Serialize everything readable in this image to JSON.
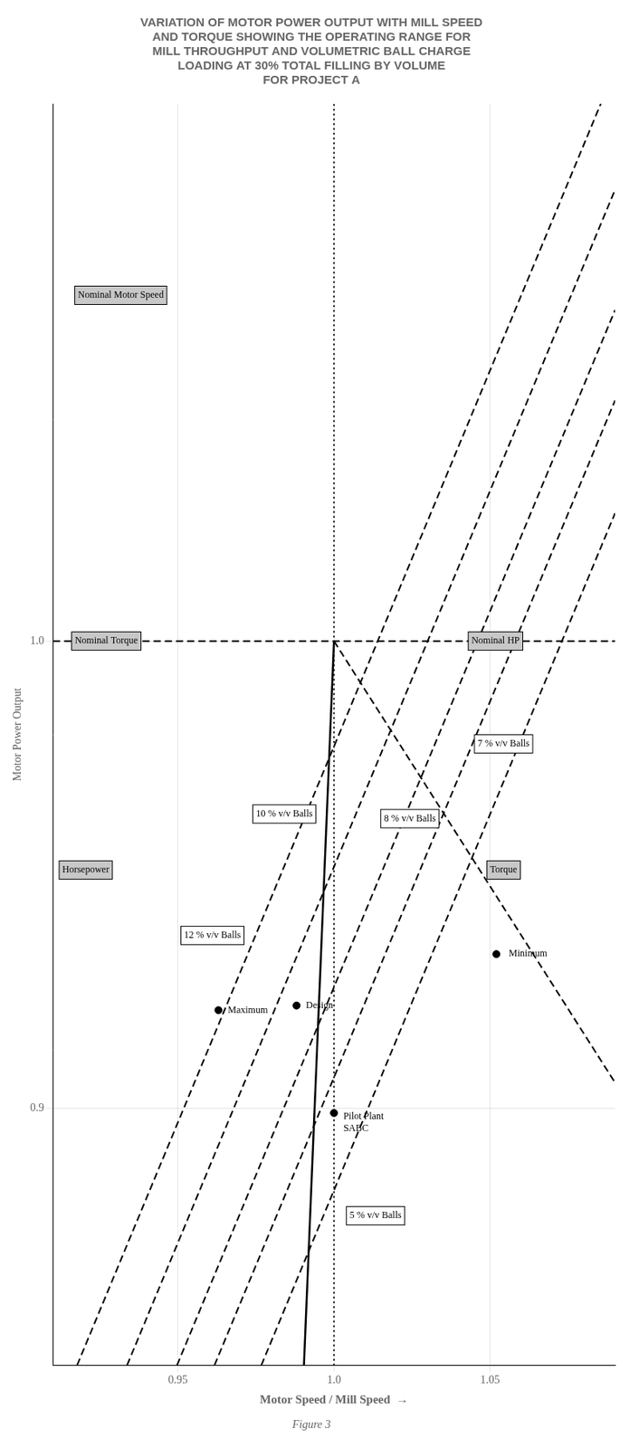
{
  "chart_data": {
    "type": "line",
    "title": [
      "VARIATION OF MOTOR POWER OUTPUT WITH MILL SPEED",
      "AND TORQUE SHOWING THE OPERATING RANGE FOR",
      "MILL THROUGHPUT AND VOLUMETRIC BALL CHARGE",
      "LOADING AT 30% TOTAL FILLING BY VOLUME",
      "FOR PROJECT A"
    ],
    "xlabel": "Motor Speed / Mill Speed  →",
    "ylabel": "Motor Power Output",
    "caption": "Figure 3",
    "xlim": [
      0.91,
      1.09
    ],
    "ylim": [
      0.845,
      1.115
    ],
    "xticks": [
      0.95,
      {
        "value": 1.0,
        "label": "1.0"
      },
      1.05
    ],
    "yticks": [
      0.9,
      {
        "value": 1.0,
        "label": "1.0"
      }
    ],
    "grid": true,
    "series": [
      {
        "type": "line",
        "line_style": "dotted",
        "color": "#000000",
        "x": [
          1.0,
          1.0
        ],
        "values": [
          0.845,
          1.115
        ]
      },
      {
        "type": "line",
        "line_style": "dashed",
        "color": "#000000",
        "x": [
          0.91,
          1.09
        ],
        "values": [
          1.0,
          1.0
        ]
      },
      {
        "type": "line",
        "line_style": "solid",
        "color": "#000000",
        "x": [
          0.99037267081,
          1.0
        ],
        "values": [
          0.845,
          1.0
        ]
      },
      {
        "type": "line",
        "line_style": "dashed",
        "color": "#000000",
        "x": [
          1.0,
          1.09
        ],
        "values": [
          1.0,
          0.9055
        ]
      },
      {
        "type": "line",
        "line_style": "dashed",
        "color": "#000000",
        "x": [
          0.9767267081,
          1.09
        ],
        "values": [
          0.845,
          1.02737
        ]
      },
      {
        "type": "line",
        "line_style": "dashed",
        "color": "#000000",
        "x": [
          0.9617267081,
          1.09
        ],
        "values": [
          0.845,
          1.05152
        ]
      },
      {
        "type": "line",
        "line_style": "dashed",
        "color": "#000000",
        "x": [
          0.9497267081,
          1.09
        ],
        "values": [
          0.845,
          1.07084
        ]
      },
      {
        "type": "line",
        "line_style": "dashed",
        "color": "#000000",
        "x": [
          0.9337267081,
          1.09
        ],
        "values": [
          0.845,
          1.0966
        ]
      },
      {
        "type": "line",
        "line_style": "dashed",
        "color": "#000000",
        "x": [
          0.9177267081,
          1.0854285714
        ],
        "values": [
          0.845,
          1.115
        ]
      },
      {
        "type": "scatter",
        "marker": "circle",
        "color": "#000000",
        "x": [
          0.963,
          0.988,
          1.0,
          1.052
        ],
        "values": [
          0.921,
          0.922,
          0.899,
          0.933
        ]
      }
    ],
    "annotations": [
      {
        "text": "5 % v/v Balls",
        "x": 1.005,
        "y": 0.877,
        "color": "#ffffff"
      },
      {
        "text": "7 % v/v Balls",
        "x": 1.046,
        "y": 0.978,
        "color": "#ffffff"
      },
      {
        "text": "8 % v/v Balls",
        "x": 1.016,
        "y": 0.962,
        "color": "#ffffff"
      },
      {
        "text": "10 % v/v Balls",
        "x": 0.975,
        "y": 0.963,
        "color": "#ffffff"
      },
      {
        "text": "12 % v/v Balls",
        "x": 0.952,
        "y": 0.937,
        "color": "#ffffff"
      },
      {
        "text": "Maximum",
        "x": 0.966,
        "y": 0.921
      },
      {
        "text": "Design",
        "x": 0.991,
        "y": 0.922
      },
      {
        "text": "Pilot Plant\nSABC",
        "x": 1.003,
        "y": 0.897
      },
      {
        "text": "Minimum",
        "x": 1.056,
        "y": 0.933
      },
      {
        "text": "Nominal Motor Speed",
        "x": 0.918,
        "y": 1.074,
        "color": "#c8c8c8"
      },
      {
        "text": "Nominal Torque",
        "x": 0.917,
        "y": 1.0,
        "color": "#c8c8c8"
      },
      {
        "text": "Nominal HP",
        "x": 1.044,
        "y": 1.0,
        "color": "#c8c8c8"
      },
      {
        "text": "Horsepower",
        "x": 0.913,
        "y": 0.951,
        "color": "#c8c8c8"
      },
      {
        "text": "Torque",
        "x": 1.05,
        "y": 0.951,
        "color": "#c8c8c8"
      }
    ]
  }
}
